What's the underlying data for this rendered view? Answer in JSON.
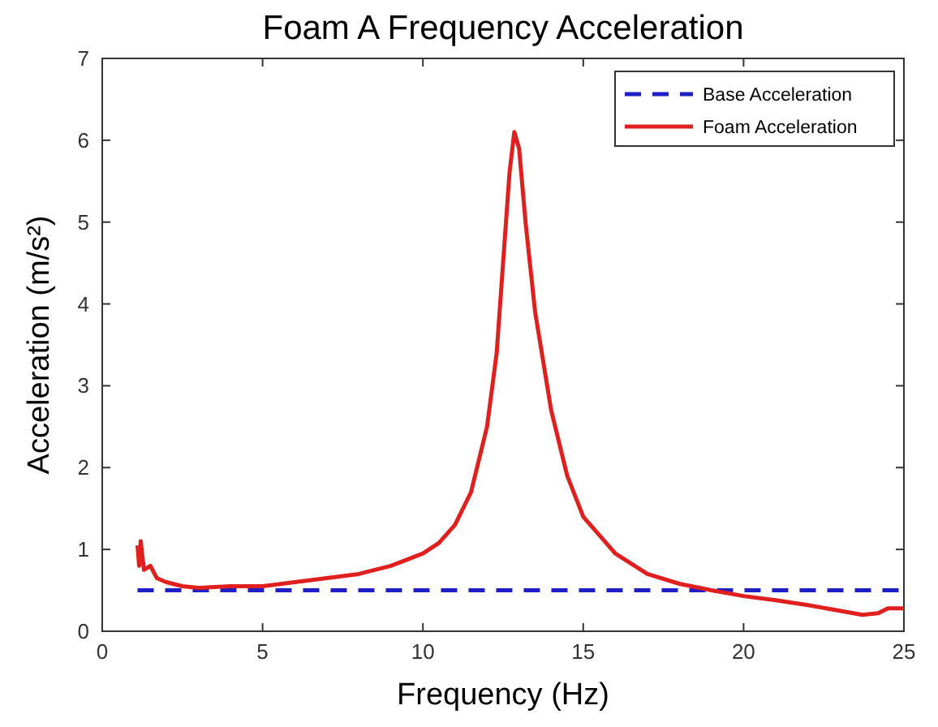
{
  "chart_data": {
    "type": "line",
    "title": "Foam A Frequency Acceleration",
    "xlabel": "Frequency (Hz)",
    "ylabel": "Acceleration (m/s²)",
    "xlim": [
      0,
      25
    ],
    "xticks": [
      0,
      5,
      10,
      15,
      20,
      25
    ],
    "ylim": [
      0,
      7
    ],
    "yticks": [
      0,
      1,
      2,
      3,
      4,
      5,
      6,
      7
    ],
    "grid": false,
    "legend": "top right",
    "series": [
      {
        "name": "Base Acceleration",
        "color": "#1f1fc8",
        "line_style": "dashed",
        "x": [
          1.1,
          25
        ],
        "values": [
          0.5,
          0.5
        ]
      },
      {
        "name": "Foam Acceleration",
        "color": "#e01f1f",
        "line_style": "solid",
        "x": [
          1.1,
          1.15,
          1.2,
          1.3,
          1.5,
          1.7,
          2,
          2.5,
          3,
          4,
          5,
          6,
          7,
          8,
          9,
          10,
          10.5,
          11,
          11.5,
          12,
          12.3,
          12.5,
          12.7,
          12.85,
          13,
          13.2,
          13.5,
          14,
          14.5,
          15,
          16,
          17,
          18,
          19,
          20,
          21,
          22,
          23,
          23.7,
          24.2,
          24.5,
          25
        ],
        "values": [
          1.05,
          0.8,
          1.1,
          0.75,
          0.8,
          0.65,
          0.6,
          0.55,
          0.53,
          0.55,
          0.55,
          0.6,
          0.65,
          0.7,
          0.8,
          0.95,
          1.08,
          1.3,
          1.7,
          2.5,
          3.4,
          4.5,
          5.6,
          6.1,
          5.9,
          5.0,
          3.9,
          2.7,
          1.9,
          1.4,
          0.95,
          0.7,
          0.58,
          0.5,
          0.43,
          0.38,
          0.32,
          0.25,
          0.2,
          0.22,
          0.28,
          0.28
        ]
      }
    ]
  }
}
